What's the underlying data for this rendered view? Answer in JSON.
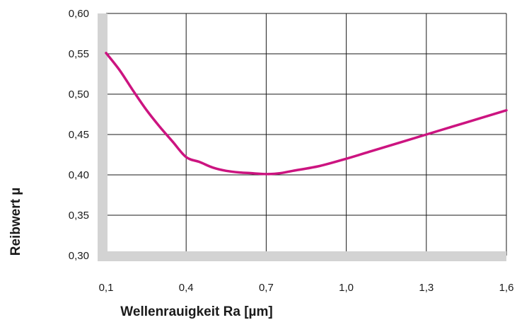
{
  "chart_data": {
    "type": "line",
    "title": "",
    "xlabel": "Wellenrauigkeit Ra [µm]",
    "ylabel": "Reibwert µ",
    "xlim": [
      0.1,
      1.6
    ],
    "ylim": [
      0.3,
      0.6
    ],
    "x_ticks": [
      0.1,
      0.4,
      0.7,
      1.0,
      1.3,
      1.6
    ],
    "x_tick_labels": [
      "0,1",
      "0,4",
      "0,7",
      "1,0",
      "1,3",
      "1,6"
    ],
    "y_ticks": [
      0.3,
      0.35,
      0.4,
      0.45,
      0.5,
      0.55,
      0.6
    ],
    "y_tick_labels": [
      "0,30",
      "0,35",
      "0,40",
      "0,45",
      "0,50",
      "0,55",
      "0,60"
    ],
    "grid": true,
    "series": [
      {
        "color": "#cc1480",
        "x": [
          0.1,
          0.15,
          0.2,
          0.25,
          0.3,
          0.35,
          0.4,
          0.45,
          0.5,
          0.55,
          0.6,
          0.65,
          0.7,
          0.75,
          0.8,
          0.9,
          1.0,
          1.1,
          1.2,
          1.3,
          1.4,
          1.5,
          1.6
        ],
        "y": [
          0.551,
          0.53,
          0.505,
          0.481,
          0.46,
          0.441,
          0.422,
          0.416,
          0.409,
          0.405,
          0.403,
          0.402,
          0.401,
          0.402,
          0.405,
          0.411,
          0.42,
          0.43,
          0.44,
          0.45,
          0.46,
          0.47,
          0.48
        ]
      }
    ],
    "colors": {
      "frame": "#d3d3d3",
      "grid": "#1a1a1a"
    }
  }
}
